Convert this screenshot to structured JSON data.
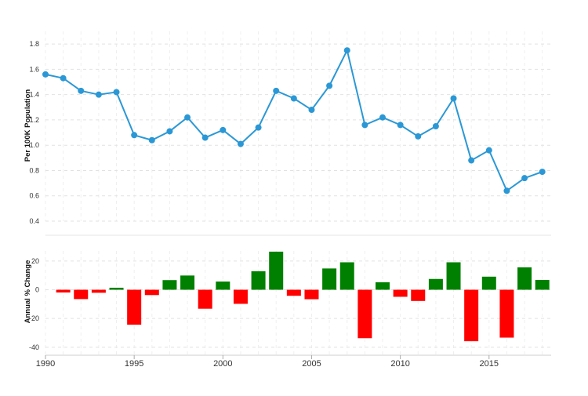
{
  "chart_data": [
    {
      "type": "line",
      "ylabel": "Per 100K Population",
      "ylim": [
        0.4,
        1.9
      ],
      "yticks": [
        "0.4",
        "0.6",
        "0.8",
        "1.0",
        "1.2",
        "1.4",
        "1.6",
        "1.8"
      ],
      "x": [
        1990,
        1991,
        1992,
        1993,
        1994,
        1995,
        1996,
        1997,
        1998,
        1999,
        2000,
        2001,
        2002,
        2003,
        2004,
        2005,
        2006,
        2007,
        2008,
        2009,
        2010,
        2011,
        2012,
        2013,
        2014,
        2015,
        2016,
        2017,
        2018
      ],
      "values": [
        1.56,
        1.53,
        1.43,
        1.4,
        1.42,
        1.08,
        1.04,
        1.11,
        1.22,
        1.06,
        1.12,
        1.01,
        1.14,
        1.43,
        1.37,
        1.28,
        1.47,
        1.75,
        1.16,
        1.22,
        1.16,
        1.07,
        1.15,
        1.37,
        0.88,
        0.96,
        0.64,
        0.74,
        0.79
      ],
      "color": "#2b98d5",
      "grid": true
    },
    {
      "type": "bar",
      "ylabel": "Annual % Change",
      "ylim": [
        -45,
        27
      ],
      "yticks": [
        "20",
        "0",
        "-20",
        "-40"
      ],
      "xticks": [
        "1990",
        "1995",
        "2000",
        "2005",
        "2010",
        "2015"
      ],
      "x": [
        1991,
        1992,
        1993,
        1994,
        1995,
        1996,
        1997,
        1998,
        1999,
        2000,
        2001,
        2002,
        2003,
        2004,
        2005,
        2006,
        2007,
        2008,
        2009,
        2010,
        2011,
        2012,
        2013,
        2014,
        2015,
        2016,
        2017,
        2018
      ],
      "values": [
        -1.9,
        -6.5,
        -2.1,
        1.4,
        -24.3,
        -3.7,
        6.7,
        9.9,
        -13.2,
        5.7,
        -9.8,
        12.9,
        26.5,
        -4.2,
        -6.6,
        14.8,
        19.1,
        -33.7,
        5.2,
        -4.9,
        -7.8,
        7.5,
        19.1,
        -35.8,
        9.1,
        -33.3,
        15.6,
        6.8
      ],
      "positive_color": "#008000",
      "negative_color": "#ff0000",
      "grid": true
    }
  ]
}
